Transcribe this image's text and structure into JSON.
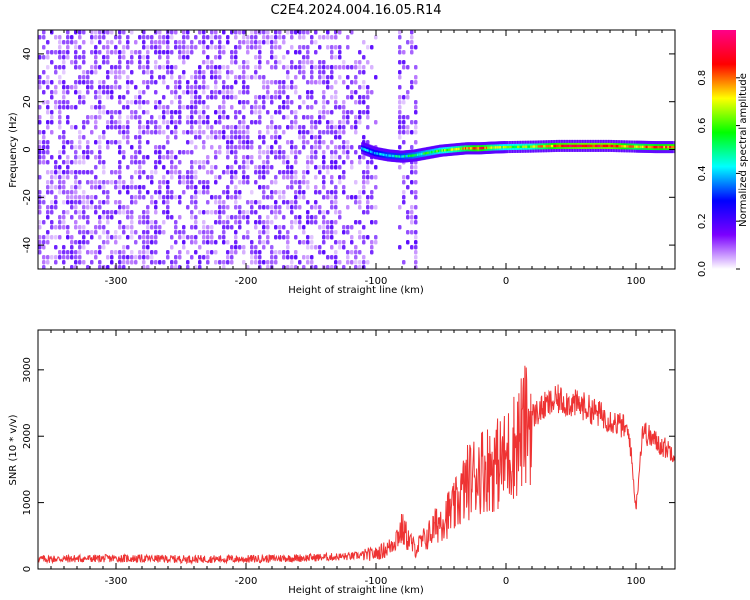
{
  "title": "C2E4.2024.004.16.05.R14",
  "colors": {
    "snr_line": "#ee3333",
    "spectrogram_noise": "#6a00e8",
    "frame": "#000000"
  },
  "chart_data": [
    {
      "type": "heatmap",
      "xlabel": "Height of straight line (km)",
      "ylabel": "Frequency (Hz)",
      "xlim": [
        -360,
        130
      ],
      "ylim": [
        -50,
        50
      ],
      "xticks": [
        -300,
        -200,
        -100,
        0,
        100
      ],
      "yticks": [
        -40,
        -20,
        0,
        20,
        40
      ],
      "colorbar": {
        "label": "Normalized spectral amplitude",
        "range": [
          0.0,
          1.0
        ],
        "ticks": [
          "0.0",
          "0.2",
          "0.4",
          "0.6",
          "0.8"
        ],
        "colormap": [
          "#ffffff",
          "#7b00ff",
          "#0000ff",
          "#00ffff",
          "#00ff00",
          "#ffff00",
          "#ff0000",
          "#ff0088"
        ]
      },
      "noise_region_x": [
        -360,
        -100
      ],
      "noise_column_x": [
        -85,
        -70
      ],
      "signal_trace": [
        {
          "x": -110,
          "f": 0.5,
          "amp": 0.35
        },
        {
          "x": -100,
          "f": -1.5,
          "amp": 0.4
        },
        {
          "x": -90,
          "f": -2.5,
          "amp": 0.45
        },
        {
          "x": -80,
          "f": -3.0,
          "amp": 0.45
        },
        {
          "x": -70,
          "f": -2.5,
          "amp": 0.5
        },
        {
          "x": -60,
          "f": -1.5,
          "amp": 0.55
        },
        {
          "x": -50,
          "f": -0.5,
          "amp": 0.6
        },
        {
          "x": -40,
          "f": 0.0,
          "amp": 0.65
        },
        {
          "x": -30,
          "f": 0.5,
          "amp": 0.75
        },
        {
          "x": -20,
          "f": 0.5,
          "amp": 0.85
        },
        {
          "x": -10,
          "f": 0.8,
          "amp": 0.7
        },
        {
          "x": 0,
          "f": 1.0,
          "amp": 0.6
        },
        {
          "x": 20,
          "f": 1.2,
          "amp": 0.65
        },
        {
          "x": 40,
          "f": 1.5,
          "amp": 0.85
        },
        {
          "x": 60,
          "f": 1.5,
          "amp": 0.9
        },
        {
          "x": 80,
          "f": 1.5,
          "amp": 0.9
        },
        {
          "x": 100,
          "f": 1.2,
          "amp": 0.75
        },
        {
          "x": 115,
          "f": 1.0,
          "amp": 0.8
        },
        {
          "x": 130,
          "f": 1.0,
          "amp": 0.85
        }
      ]
    },
    {
      "type": "line",
      "xlabel": "Height of straight line (km)",
      "ylabel": "SNR (10 * v/v)",
      "xlim": [
        -360,
        130
      ],
      "ylim": [
        0,
        3600
      ],
      "xticks": [
        -300,
        -200,
        -100,
        0,
        100
      ],
      "yticks": [
        0,
        1000,
        2000,
        3000
      ],
      "series": [
        {
          "x": [
            -360,
            -300,
            -250,
            -200,
            -150,
            -120,
            -100,
            -90,
            -80,
            -70,
            -60,
            -50,
            -40,
            -30,
            -20,
            -10,
            0,
            10,
            20,
            30,
            40,
            50,
            60,
            70,
            80,
            90,
            95,
            100,
            105,
            110,
            120,
            130
          ],
          "y": [
            150,
            160,
            150,
            150,
            170,
            190,
            230,
            320,
            600,
            300,
            500,
            750,
            900,
            1300,
            1500,
            1550,
            1650,
            2000,
            2300,
            2450,
            2550,
            2500,
            2450,
            2350,
            2250,
            2150,
            2000,
            900,
            2100,
            2000,
            1850,
            1750
          ]
        }
      ]
    }
  ]
}
